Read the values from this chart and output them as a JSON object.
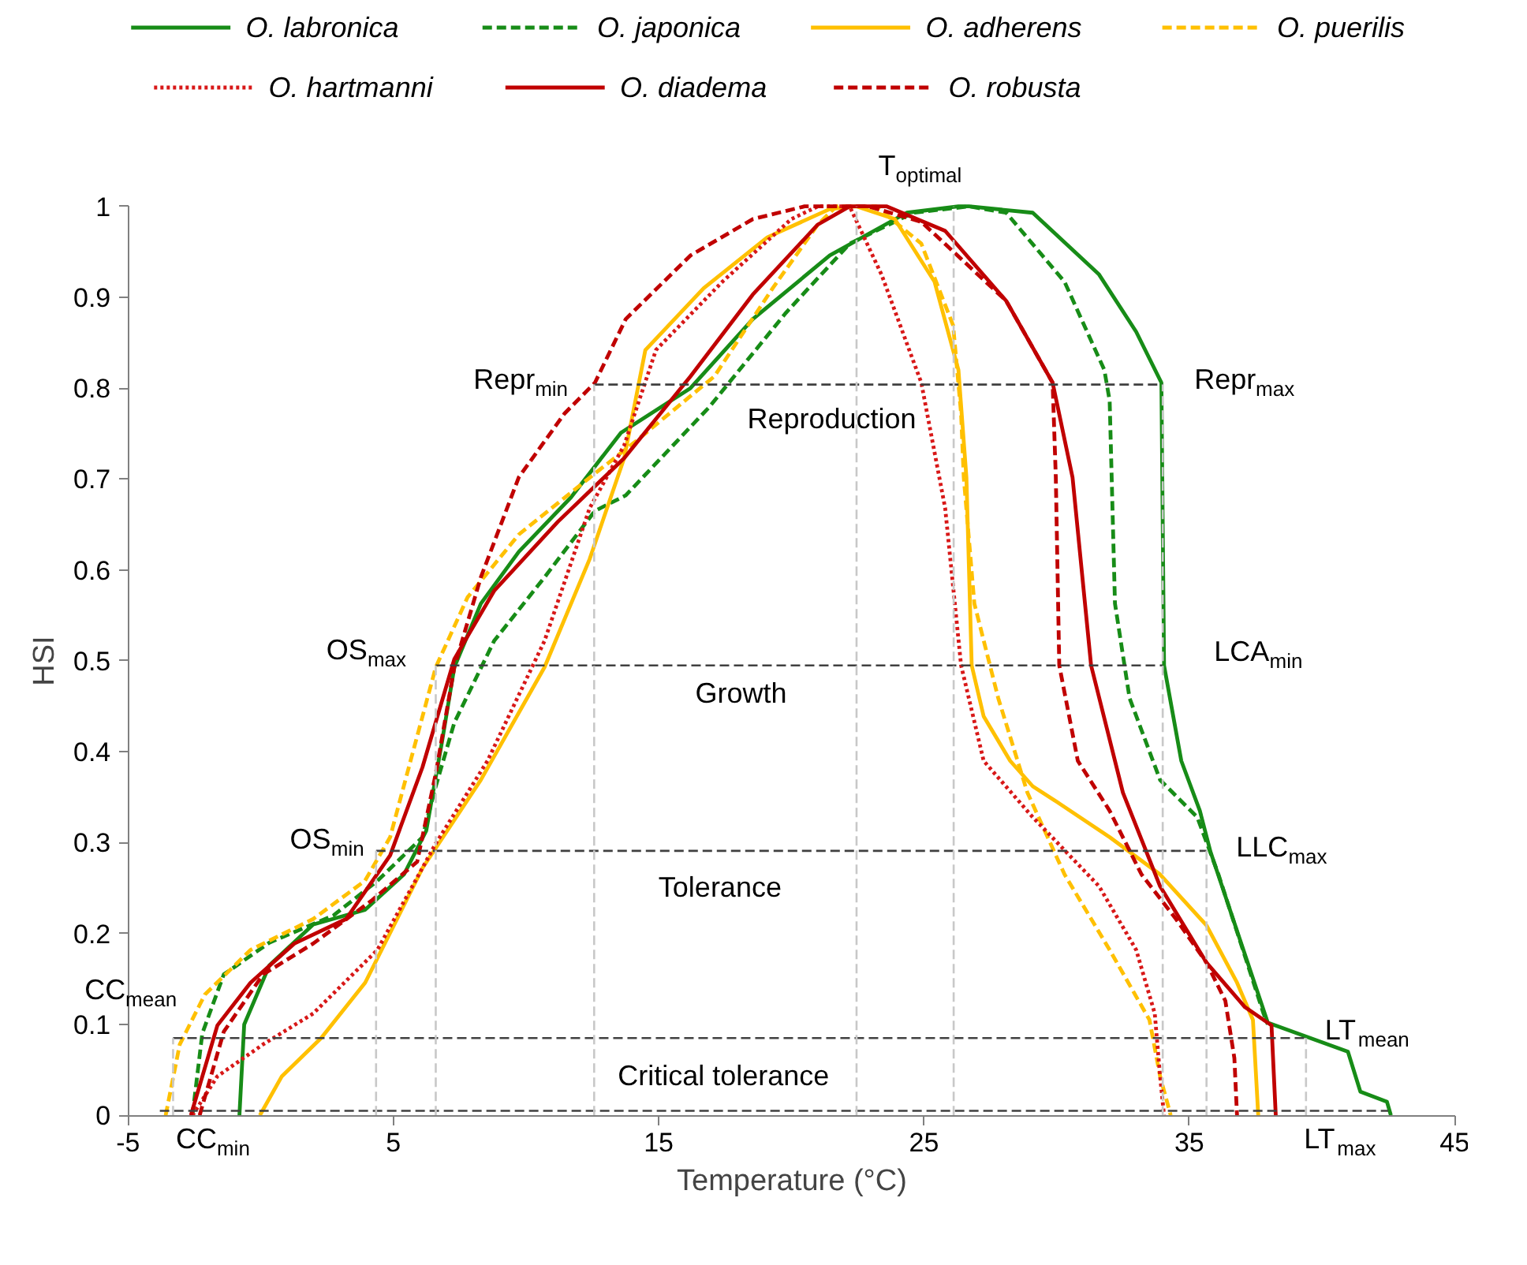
{
  "chart_data": {
    "type": "line",
    "xlabel": "Temperature (°C)",
    "ylabel": "HSI",
    "xlim": [
      -5,
      45
    ],
    "xticks": [
      -5,
      5,
      15,
      25,
      35,
      45
    ],
    "ylim": [
      0,
      1
    ],
    "yticks": [
      0,
      0.1,
      0.2,
      0.3,
      0.4,
      0.5,
      0.6,
      0.7,
      0.8,
      0.9,
      1
    ],
    "grid": false,
    "legend": "top",
    "marker": "none",
    "series": [
      {
        "name": "O. labronica",
        "color": "#178c17",
        "line_style": "solid",
        "x": [
          -0.8,
          -0.62,
          0.33,
          1.98,
          3.93,
          5.4,
          6.24,
          6.83,
          7.3,
          8.3,
          9.73,
          11.7,
          13.58,
          16.2,
          18.55,
          21.45,
          24.35,
          26.3,
          26.7,
          29.1,
          31.6,
          33.0,
          33.95,
          34.05,
          34.7,
          35.4,
          35.8,
          37.96,
          40.98,
          41.45,
          42.45,
          42.6
        ],
        "values": [
          0,
          0.1,
          0.165,
          0.21,
          0.226,
          0.265,
          0.313,
          0.41,
          0.493,
          0.563,
          0.62,
          0.68,
          0.751,
          0.8,
          0.876,
          0.946,
          0.993,
          1,
          1,
          0.993,
          0.925,
          0.862,
          0.806,
          0.495,
          0.39,
          0.335,
          0.29,
          0.102,
          0.07,
          0.026,
          0.015,
          0
        ]
      },
      {
        "name": "O. japonica",
        "color": "#178c17",
        "line_style": "dashed",
        "x": [
          -2.57,
          -2.2,
          -1.39,
          0.33,
          2.75,
          4.4,
          6.1,
          6.6,
          7.3,
          8.8,
          10.7,
          12.6,
          13.76,
          16.9,
          19.8,
          22.2,
          24.6,
          26.7,
          28.1,
          30.3,
          31.8,
          32.0,
          32.2,
          32.75,
          33.9,
          35.3,
          36.1,
          37.8,
          37.96
        ],
        "values": [
          0,
          0.09,
          0.155,
          0.19,
          0.22,
          0.258,
          0.306,
          0.362,
          0.432,
          0.522,
          0.592,
          0.665,
          0.682,
          0.779,
          0.883,
          0.959,
          0.993,
          1,
          0.993,
          0.917,
          0.82,
          0.786,
          0.563,
          0.459,
          0.369,
          0.328,
          0.265,
          0.112,
          0.1
        ]
      },
      {
        "name": "O. adherens",
        "color": "#ffc000",
        "line_style": "solid",
        "x": [
          -0.03,
          0.8,
          2.28,
          3.94,
          6.1,
          8.3,
          10.7,
          12.4,
          13.7,
          14.5,
          16.7,
          19.1,
          21.45,
          22.46,
          23.9,
          25.4,
          26.3,
          26.6,
          26.8,
          27.25,
          28.25,
          29.1,
          30.0,
          32.0,
          33.9,
          35.65,
          36.8,
          37.4,
          37.6
        ],
        "values": [
          0,
          0.043,
          0.085,
          0.146,
          0.272,
          0.369,
          0.493,
          0.612,
          0.723,
          0.842,
          0.91,
          0.966,
          0.997,
          1,
          0.986,
          0.917,
          0.82,
          0.702,
          0.495,
          0.439,
          0.39,
          0.362,
          0.345,
          0.306,
          0.265,
          0.209,
          0.146,
          0.105,
          0
        ]
      },
      {
        "name": "O. puerilis",
        "color": "#ffc000",
        "line_style": "dashed",
        "x": [
          -3.58,
          -3.05,
          -2.1,
          -0.38,
          1.98,
          3.93,
          4.88,
          5.65,
          6.6,
          7.8,
          9.73,
          12.16,
          14.2,
          17.1,
          19.3,
          21.0,
          21.7,
          23.2,
          24.9,
          26.1,
          26.4,
          26.5,
          26.9,
          27.8,
          28.9,
          30.3,
          32.0,
          33.5,
          33.9,
          34.3
        ],
        "values": [
          0,
          0.078,
          0.133,
          0.182,
          0.216,
          0.258,
          0.306,
          0.39,
          0.493,
          0.57,
          0.639,
          0.696,
          0.743,
          0.813,
          0.91,
          0.98,
          1,
          1,
          0.959,
          0.869,
          0.772,
          0.702,
          0.563,
          0.459,
          0.355,
          0.265,
          0.182,
          0.105,
          0.043,
          0
        ]
      },
      {
        "name": "O. hartmanni",
        "color": "#d81818",
        "line_style": "dotted",
        "x": [
          -2.57,
          -1.63,
          0.09,
          1.98,
          4.4,
          6.6,
          8.55,
          10.7,
          12.4,
          13.7,
          14.9,
          17.4,
          20.0,
          21.0,
          22.2,
          23.4,
          24.9,
          25.8,
          26.4,
          27.25,
          29.1,
          29.6,
          31.6,
          33.0,
          33.7,
          33.9,
          34.05
        ],
        "values": [
          0,
          0.043,
          0.078,
          0.112,
          0.182,
          0.299,
          0.39,
          0.522,
          0.668,
          0.737,
          0.842,
          0.917,
          0.986,
          1,
          1,
          0.925,
          0.806,
          0.668,
          0.495,
          0.39,
          0.328,
          0.313,
          0.252,
          0.182,
          0.112,
          0.043,
          0
        ]
      },
      {
        "name": "O. diadema",
        "color": "#c00000",
        "line_style": "solid",
        "x": [
          -2.63,
          -1.63,
          -0.38,
          1.27,
          3.22,
          4.88,
          6.1,
          7.3,
          8.8,
          11.2,
          13.7,
          16.2,
          18.55,
          21.0,
          22.2,
          23.6,
          25.8,
          28.1,
          29.85,
          30.6,
          31.3,
          32.5,
          33.9,
          35.65,
          37.1,
          38.1,
          38.26
        ],
        "values": [
          0,
          0.099,
          0.146,
          0.189,
          0.216,
          0.286,
          0.383,
          0.502,
          0.577,
          0.653,
          0.723,
          0.813,
          0.903,
          0.98,
          1,
          1,
          0.973,
          0.896,
          0.806,
          0.702,
          0.495,
          0.355,
          0.252,
          0.168,
          0.119,
          0.099,
          0
        ]
      },
      {
        "name": "O. robusta",
        "color": "#c00000",
        "line_style": "dashed",
        "x": [
          -2.3,
          -1.39,
          0.09,
          1.98,
          4.17,
          5.9,
          6.6,
          7.3,
          8.3,
          9.73,
          11.45,
          12.6,
          13.76,
          16.2,
          18.55,
          20.5,
          22.9,
          24.9,
          28.1,
          29.85,
          29.97,
          30.1,
          30.8,
          32.0,
          33.2,
          34.5,
          35.65,
          36.36,
          36.7,
          36.8
        ],
        "values": [
          0,
          0.092,
          0.155,
          0.189,
          0.236,
          0.279,
          0.376,
          0.493,
          0.592,
          0.702,
          0.772,
          0.806,
          0.876,
          0.946,
          0.986,
          1,
          1,
          0.983,
          0.896,
          0.806,
          0.702,
          0.495,
          0.39,
          0.335,
          0.265,
          0.216,
          0.168,
          0.126,
          0.063,
          0
        ]
      },
      {
        "color": "#404040",
        "line_style": "dashed",
        "x": [
          12.57,
          34.0
        ],
        "values": [
          0.804,
          0.804
        ]
      },
      {
        "color": "#404040",
        "line_style": "dashed",
        "x": [
          6.6,
          34.0
        ],
        "values": [
          0.495,
          0.495
        ]
      },
      {
        "color": "#404040",
        "line_style": "dashed",
        "x": [
          4.35,
          35.65
        ],
        "values": [
          0.291,
          0.291
        ]
      },
      {
        "color": "#404040",
        "line_style": "dashed",
        "x": [
          -3.3,
          39.4
        ],
        "values": [
          0.085,
          0.085
        ]
      },
      {
        "color": "#404040",
        "line_style": "dashed",
        "x": [
          -3.8,
          42.5
        ],
        "values": [
          0.005,
          0.005
        ]
      },
      {
        "color": "#c8c8c8",
        "line_style": "dashed",
        "x": [
          -3.3,
          -3.3
        ],
        "values": [
          0,
          0.085
        ]
      },
      {
        "color": "#c8c8c8",
        "line_style": "dashed",
        "x": [
          4.35,
          4.35
        ],
        "values": [
          0,
          0.291
        ]
      },
      {
        "color": "#c8c8c8",
        "line_style": "dashed",
        "x": [
          6.6,
          6.6
        ],
        "values": [
          0,
          0.495
        ]
      },
      {
        "color": "#c8c8c8",
        "line_style": "dashed",
        "x": [
          12.57,
          12.57
        ],
        "values": [
          0,
          0.804
        ]
      },
      {
        "color": "#c8c8c8",
        "line_style": "dashed",
        "x": [
          22.46,
          22.46
        ],
        "values": [
          0,
          1
        ]
      },
      {
        "color": "#c8c8c8",
        "line_style": "dashed",
        "x": [
          26.12,
          26.12
        ],
        "values": [
          0,
          1
        ]
      },
      {
        "color": "#c8c8c8",
        "line_style": "dashed",
        "x": [
          34.0,
          34.0
        ],
        "values": [
          0,
          0.804
        ]
      },
      {
        "color": "#c8c8c8",
        "line_style": "dashed",
        "x": [
          35.65,
          35.65
        ],
        "values": [
          0,
          0.291
        ]
      },
      {
        "color": "#c8c8c8",
        "line_style": "dashed",
        "x": [
          39.4,
          39.4
        ],
        "values": [
          0,
          0.085
        ]
      }
    ],
    "annotations": [
      "T$_{optimal}$",
      "Repr$_{min}$",
      "Repr$_{max}$",
      "Reproduction",
      "OS$_{max}$",
      "Growth",
      "LCA$_{min}$",
      "OS$_{min}$",
      "Tolerance",
      "LLC$_{max}$",
      "CC$_{mean}$",
      "LT$_{mean}$",
      "Critical tolerance",
      "CC$_{min}$",
      "LT$_{max}$"
    ]
  }
}
